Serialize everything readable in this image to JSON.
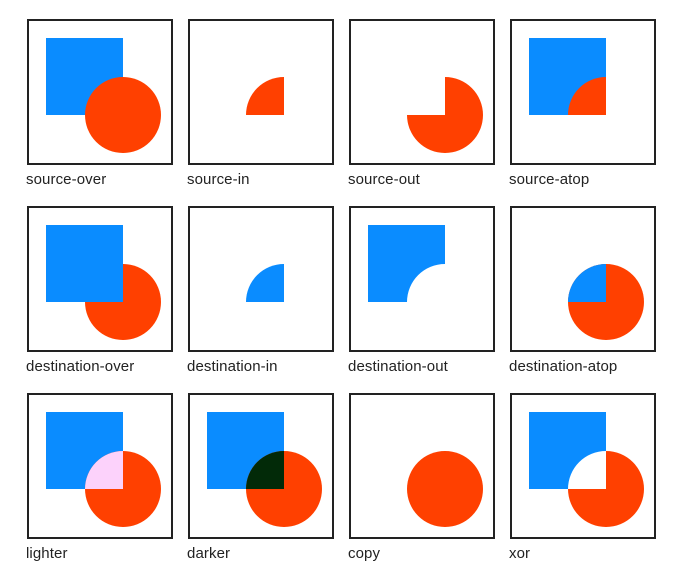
{
  "colors": {
    "square": "#0a8cff",
    "circle": "#ff4000",
    "lighter_overlap": "#fcd2fb",
    "darker_overlap": "#022a08",
    "background": "#ffffff",
    "border": "#222222"
  },
  "operations": [
    {
      "key": "source-over",
      "label": "source-over"
    },
    {
      "key": "source-in",
      "label": "source-in"
    },
    {
      "key": "source-out",
      "label": "source-out"
    },
    {
      "key": "source-atop",
      "label": "source-atop"
    },
    {
      "key": "destination-over",
      "label": "destination-over"
    },
    {
      "key": "destination-in",
      "label": "destination-in"
    },
    {
      "key": "destination-out",
      "label": "destination-out"
    },
    {
      "key": "destination-atop",
      "label": "destination-atop"
    },
    {
      "key": "lighter",
      "label": "lighter"
    },
    {
      "key": "darker",
      "label": "darker"
    },
    {
      "key": "copy",
      "label": "copy"
    },
    {
      "key": "xor",
      "label": "xor"
    }
  ]
}
